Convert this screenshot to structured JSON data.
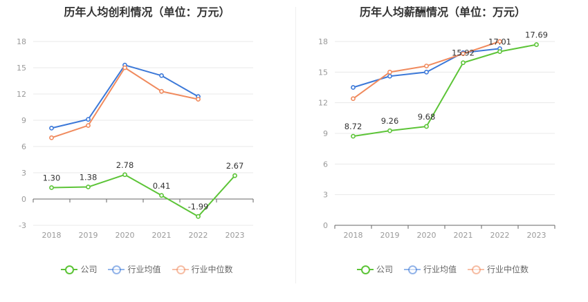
{
  "chart_data": [
    {
      "type": "line",
      "title": "历年人均创利情况（单位：万元）",
      "categories": [
        "2018",
        "2019",
        "2020",
        "2021",
        "2022",
        "2023"
      ],
      "yticks": [
        -3,
        0,
        3,
        6,
        9,
        12,
        15,
        18
      ],
      "ylim": [
        -3,
        18
      ],
      "series": [
        {
          "name": "公司",
          "color": "#5cc437",
          "values": [
            1.3,
            1.38,
            2.78,
            0.41,
            -1.99,
            2.67
          ],
          "labels": [
            "1.30",
            "1.38",
            "2.78",
            "0.41",
            "-1.99",
            "2.67"
          ]
        },
        {
          "name": "行业均值",
          "color": "#3b78d8",
          "values": [
            8.1,
            9.1,
            15.3,
            14.1,
            11.7,
            null
          ]
        },
        {
          "name": "行业中位数",
          "color": "#f08a5d",
          "values": [
            7.0,
            8.4,
            15.0,
            12.3,
            11.4,
            null
          ]
        }
      ]
    },
    {
      "type": "line",
      "title": "历年人均薪酬情况（单位：万元）",
      "categories": [
        "2018",
        "2019",
        "2020",
        "2021",
        "2022",
        "2023"
      ],
      "yticks": [
        0,
        3,
        6,
        9,
        12,
        15,
        18
      ],
      "ylim": [
        0,
        18
      ],
      "series": [
        {
          "name": "公司",
          "color": "#5cc437",
          "values": [
            8.72,
            9.26,
            9.68,
            15.92,
            17.01,
            17.69
          ],
          "labels": [
            "8.72",
            "9.26",
            "9.68",
            "15.92",
            "17.01",
            "17.69"
          ]
        },
        {
          "name": "行业均值",
          "color": "#3b78d8",
          "values": [
            13.5,
            14.6,
            15.0,
            16.9,
            17.3,
            null
          ]
        },
        {
          "name": "行业中位数",
          "color": "#f08a5d",
          "values": [
            12.4,
            15.0,
            15.6,
            16.8,
            18.0,
            null
          ]
        }
      ]
    }
  ]
}
